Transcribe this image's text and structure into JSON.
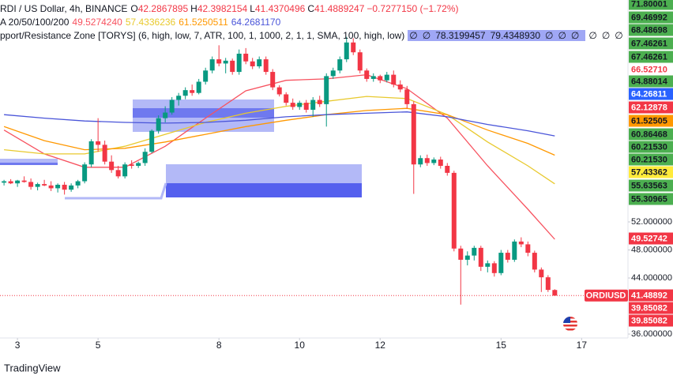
{
  "chart_data": {
    "type": "candlestick",
    "title": "RDI / US Dollar, 4h, BINANCE",
    "ohlc_keys": [
      "O",
      "H",
      "L",
      "C"
    ],
    "change_label": "−0.7277150 (−1.72%)",
    "up_color": "#089981",
    "down_color": "#f23645",
    "open": [
      57.6,
      57.8,
      57.5,
      57.9,
      57.7,
      57.0,
      57.4,
      57.2,
      56.8,
      57.3,
      56.6,
      57.2,
      57.8,
      60.2,
      63.5,
      63.0,
      60.6,
      59.4,
      58.5,
      60.2,
      60.0,
      60.4,
      62.0,
      65.0,
      66.8,
      67.6,
      69.4,
      70.0,
      70.8,
      70.4,
      72.0,
      73.6,
      75.2,
      74.6,
      75.0,
      73.4,
      76.0,
      74.9,
      74.2,
      75.2,
      73.4,
      71.2,
      70.2,
      69.0,
      68.4,
      69.0,
      68.0,
      69.4,
      68.8,
      72.8,
      73.6,
      75.2,
      77.6,
      76.2,
      73.6,
      72.4,
      72.8,
      72.2,
      73.0,
      71.6,
      70.9,
      68.8,
      60.2,
      61.1,
      60.4,
      60.9,
      60.0,
      59.0,
      48.2,
      46.6,
      47.2,
      48.3,
      45.6,
      46.1,
      44.7,
      47.6,
      46.6,
      49.2,
      48.8,
      47.6,
      45.2,
      44.1,
      42.2867895
    ],
    "high": [
      58.0,
      58.1,
      58.0,
      58.5,
      58.2,
      57.6,
      58.0,
      57.8,
      57.5,
      57.7,
      57.5,
      58.0,
      60.5,
      63.8,
      66.8,
      63.6,
      61.5,
      60.0,
      60.5,
      60.8,
      60.6,
      62.5,
      65.2,
      67.2,
      68.5,
      69.8,
      70.4,
      71.2,
      71.6,
      72.4,
      74.0,
      75.6,
      77.2,
      75.4,
      75.3,
      76.6,
      76.8,
      75.4,
      75.6,
      75.6,
      73.8,
      71.5,
      70.5,
      69.6,
      69.3,
      69.4,
      69.8,
      70.0,
      73.2,
      74.0,
      75.6,
      78.4,
      78.2,
      76.6,
      73.9,
      73.2,
      73.0,
      73.4,
      73.6,
      72.2,
      71.4,
      69.2,
      61.5,
      61.6,
      61.2,
      61.3,
      60.4,
      59.3,
      48.6,
      47.8,
      48.6,
      48.6,
      46.5,
      46.4,
      48.0,
      48.0,
      49.5,
      49.8,
      49.2,
      47.9,
      45.5,
      44.4,
      42.3982154
    ],
    "low": [
      57.2,
      57.4,
      57.0,
      57.6,
      56.6,
      56.5,
      57.1,
      56.4,
      56.2,
      55.9,
      56.3,
      56.8,
      57.5,
      59.8,
      62.0,
      60.2,
      59.0,
      58.2,
      58.2,
      59.6,
      59.7,
      60.0,
      61.8,
      64.6,
      66.2,
      67.3,
      68.6,
      69.5,
      70.0,
      70.2,
      71.6,
      73.2,
      74.2,
      73.2,
      73.0,
      73.0,
      74.5,
      73.8,
      73.9,
      73.0,
      70.8,
      69.9,
      68.6,
      68.0,
      68.0,
      67.6,
      67.0,
      68.4,
      65.6,
      72.4,
      73.2,
      74.8,
      75.8,
      73.2,
      72.0,
      72.0,
      71.8,
      71.9,
      71.2,
      70.5,
      68.2,
      56.0,
      59.8,
      60.0,
      60.1,
      59.6,
      58.6,
      47.8,
      40.2,
      45.8,
      46.5,
      45.0,
      44.8,
      44.2,
      44.4,
      46.2,
      46.3,
      48.4,
      47.1,
      44.8,
      42.0,
      42.0,
      41.4370496
    ],
    "close": [
      57.8,
      57.5,
      57.9,
      57.7,
      57.0,
      57.4,
      57.2,
      56.8,
      57.3,
      56.6,
      57.2,
      57.8,
      60.2,
      63.5,
      63.0,
      60.6,
      59.4,
      58.5,
      60.2,
      60.0,
      60.4,
      62.0,
      65.0,
      66.8,
      67.6,
      69.4,
      70.0,
      70.8,
      70.4,
      72.0,
      73.6,
      75.2,
      74.6,
      75.0,
      73.4,
      76.0,
      74.9,
      74.2,
      75.2,
      73.4,
      71.2,
      70.2,
      69.0,
      68.4,
      69.0,
      68.0,
      69.4,
      68.8,
      72.8,
      73.6,
      75.2,
      77.6,
      76.2,
      73.6,
      72.4,
      72.8,
      72.2,
      73.0,
      71.6,
      70.9,
      68.8,
      60.2,
      61.1,
      60.4,
      60.9,
      60.0,
      59.0,
      48.2,
      46.6,
      47.2,
      48.3,
      45.6,
      46.1,
      44.7,
      47.6,
      46.6,
      49.2,
      48.8,
      47.6,
      45.2,
      44.1,
      42.3,
      41.4889247
    ],
    "indicator_label": "A 20/50/100/200",
    "series": [
      {
        "color": "#f7525f",
        "last_label": "49.5274240",
        "x": [
          0,
          6,
          12,
          18,
          24,
          30,
          36,
          42,
          48,
          54,
          60,
          66,
          72,
          78,
          82
        ],
        "values": [
          65.1,
          61.7,
          59.8,
          59.8,
          62.8,
          66.8,
          70.7,
          72.2,
          72.4,
          73.0,
          71.0,
          66.8,
          60.0,
          53.8,
          49.527424
        ]
      },
      {
        "color": "#e8c92e",
        "last_label": "57.4336236",
        "x": [
          0,
          6,
          12,
          18,
          24,
          30,
          36,
          42,
          48,
          54,
          60,
          66,
          72,
          78,
          82
        ],
        "values": [
          62.3,
          61.7,
          61.7,
          62.8,
          64.5,
          66.2,
          67.5,
          68.5,
          69.2,
          69.9,
          69.6,
          67.3,
          63.4,
          60.0,
          57.4336236
        ]
      },
      {
        "color": "#ff9800",
        "last_label": "61.5250511",
        "x": [
          0,
          6,
          12,
          18,
          24,
          30,
          36,
          42,
          48,
          54,
          60,
          66,
          72,
          78,
          82
        ],
        "values": [
          65.6,
          63.6,
          62.3,
          62.5,
          63.4,
          64.5,
          65.6,
          66.5,
          67.3,
          67.9,
          68.2,
          67.3,
          65.1,
          63.2,
          61.5250511
        ]
      },
      {
        "color": "#4a55d9",
        "last_label": "64.2681170",
        "x": [
          0,
          6,
          12,
          18,
          24,
          30,
          36,
          42,
          48,
          54,
          60,
          66,
          72,
          78,
          82
        ],
        "values": [
          67.3,
          66.8,
          66.4,
          66.2,
          66.1,
          66.2,
          66.5,
          67.0,
          67.3,
          67.5,
          67.7,
          67.0,
          65.9,
          65.0,
          64.268117
        ]
      }
    ],
    "zone_label": "pport/Resistance Zone [TORYS] (6, high, low, 7, ATR, 100, 1, 1000, 2, 1, 1, SMA, 100, high, low)",
    "zone_values": [
      "∅",
      "∅",
      "78.3199457",
      "79.4348930",
      "∅",
      "∅",
      "∅",
      "∅",
      "∅",
      "∅"
    ],
    "xlim": [
      -0.6,
      92.9
    ],
    "xticks": [
      {
        "value": 2,
        "label": "3"
      },
      {
        "value": 14,
        "label": "5"
      },
      {
        "value": 32,
        "label": "8"
      },
      {
        "value": 44,
        "label": "10"
      },
      {
        "value": 56,
        "label": "12"
      },
      {
        "value": 74,
        "label": "15"
      },
      {
        "value": 86,
        "label": "17"
      }
    ],
    "ylim": [
      35.44,
      83.66
    ],
    "yticks": [
      {
        "value": 52,
        "label": "52.000000"
      },
      {
        "value": 48,
        "label": "48.000000"
      },
      {
        "value": 44,
        "label": "44.000000"
      },
      {
        "value": 36,
        "label": "36.000000"
      }
    ],
    "axis_labels": [
      {
        "label": "71.80001",
        "bg": "#4caf50",
        "fg": "#131722"
      },
      {
        "label": "69.46992",
        "bg": "#4caf50",
        "fg": "#131722"
      },
      {
        "label": "68.48698",
        "bg": "#4caf50",
        "fg": "#131722"
      },
      {
        "label": "67.46261",
        "bg": "#4caf50",
        "fg": "#131722"
      },
      {
        "label": "67.46261",
        "bg": "#4caf50",
        "fg": "#131722"
      },
      {
        "label": "66.52710",
        "bg": "#ffffff",
        "fg": "#f23645"
      },
      {
        "label": "64.88014",
        "bg": "#4caf50",
        "fg": "#131722"
      },
      {
        "label": "64.26811",
        "bg": "#2962ff",
        "fg": "#ffffff"
      },
      {
        "label": "62.12878",
        "bg": "#f23645",
        "fg": "#ffffff"
      },
      {
        "label": "61.52505",
        "bg": "#ff9800",
        "fg": "#131722"
      },
      {
        "label": "60.86468",
        "bg": "#4caf50",
        "fg": "#131722"
      },
      {
        "label": "60.21530",
        "bg": "#4caf50",
        "fg": "#131722"
      },
      {
        "label": "60.21530",
        "bg": "#4caf50",
        "fg": "#131722"
      },
      {
        "label": "57.43362",
        "bg": "#ffeb3b",
        "fg": "#131722"
      },
      {
        "label": "55.63563",
        "bg": "#4caf50",
        "fg": "#131722"
      },
      {
        "label": "55.30965",
        "bg": "#4caf50",
        "fg": "#131722"
      },
      {
        "label": "49.52742",
        "bg": "#f23645",
        "fg": "#ffffff"
      },
      {
        "label": "41.48892",
        "bg": "#f23645",
        "fg": "#ffffff"
      },
      {
        "label": "39.85082",
        "bg": "#f23645",
        "fg": "#ffffff"
      },
      {
        "label": "39.85082",
        "bg": "#f23645",
        "fg": "#ffffff"
      }
    ],
    "symbol_label": "ORDIUSD"
  },
  "brand": "TradingView"
}
